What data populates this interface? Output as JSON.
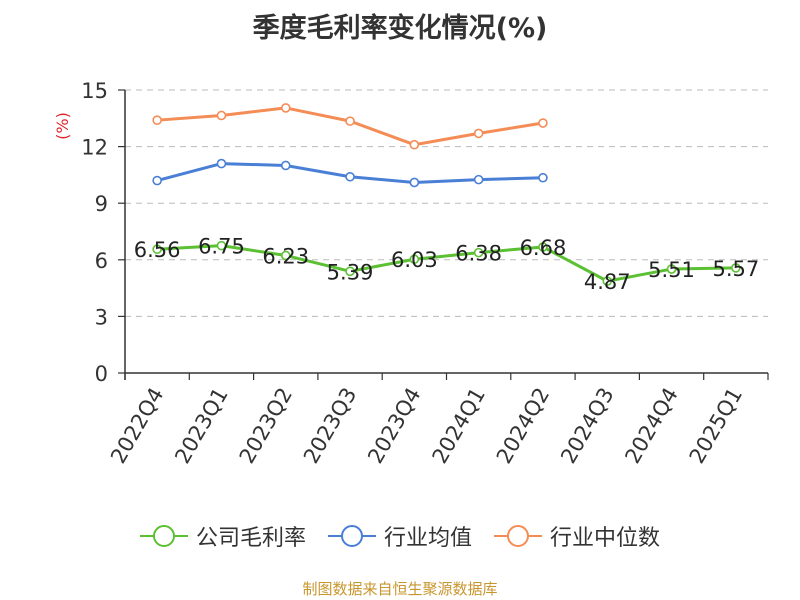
{
  "title": "季度毛利率变化情况(%)",
  "source": "制图数据来自恒生聚源数据库",
  "chart_data": {
    "type": "line",
    "title": "季度毛利率变化情况(%)",
    "xlabel": "",
    "ylabel": "(%)",
    "ylim": [
      0,
      15
    ],
    "yticks": [
      0,
      3,
      6,
      9,
      12,
      15
    ],
    "grid": true,
    "legend_position": "bottom",
    "categories": [
      "2022Q4",
      "2023Q1",
      "2023Q2",
      "2023Q3",
      "2023Q4",
      "2024Q1",
      "2024Q2",
      "2024Q3",
      "2024Q4",
      "2025Q1"
    ],
    "series": [
      {
        "name": "公司毛利率",
        "color": "#5cc033",
        "values": [
          6.56,
          6.75,
          6.23,
          5.39,
          6.03,
          6.38,
          6.68,
          4.87,
          5.51,
          5.57
        ],
        "labels": [
          "6.56",
          "6.75",
          "6.23",
          "5.39",
          "6.03",
          "6.38",
          "6.68",
          "4.87",
          "5.51",
          "5.57"
        ]
      },
      {
        "name": "行业均值",
        "color": "#4a7fd6",
        "values": [
          10.2,
          11.1,
          11.0,
          10.4,
          10.1,
          10.25,
          10.35,
          null,
          null,
          null
        ]
      },
      {
        "name": "行业中位数",
        "color": "#f48c56",
        "values": [
          13.4,
          13.65,
          14.05,
          13.35,
          12.1,
          12.7,
          13.25,
          null,
          null,
          null
        ]
      }
    ]
  }
}
